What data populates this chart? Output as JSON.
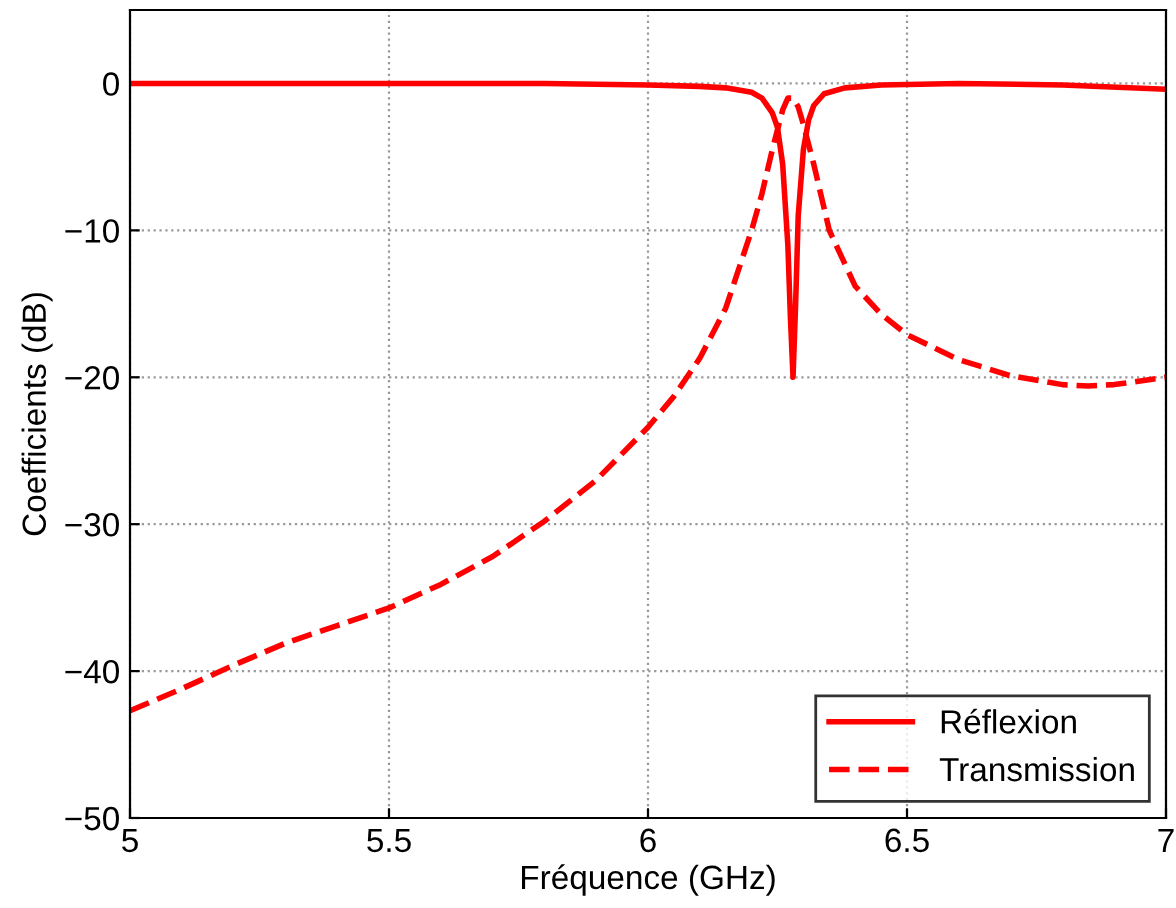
{
  "chart_data": {
    "type": "line",
    "xlabel": "Fréquence (GHz)",
    "ylabel": "Coefficients (dB)",
    "xlim": [
      5,
      7
    ],
    "ylim": [
      -50,
      5
    ],
    "xticks": [
      5,
      5.5,
      6,
      6.5,
      7
    ],
    "yticks": [
      -50,
      -40,
      -30,
      -20,
      -10,
      0
    ],
    "grid": true,
    "legend": "bottom right",
    "series": [
      {
        "name": "Réflexion",
        "color": "#ff0000",
        "line_style": "solid",
        "x": [
          5,
          5.5,
          5.8,
          6.0,
          6.1,
          6.15,
          6.2,
          6.22,
          6.24,
          6.25,
          6.26,
          6.27,
          6.275,
          6.28,
          6.285,
          6.29,
          6.3,
          6.31,
          6.32,
          6.34,
          6.38,
          6.45,
          6.6,
          6.8,
          7
        ],
        "values": [
          0,
          0,
          0,
          -0.1,
          -0.2,
          -0.3,
          -0.6,
          -1,
          -2,
          -3,
          -5.5,
          -11,
          -16,
          -20,
          -15,
          -9,
          -4.5,
          -2.5,
          -1.5,
          -0.7,
          -0.3,
          -0.1,
          0,
          -0.1,
          -0.4
        ]
      },
      {
        "name": "Transmission",
        "color": "#ff0000",
        "line_style": "dashed",
        "x": [
          5,
          5.1,
          5.2,
          5.3,
          5.4,
          5.5,
          5.6,
          5.7,
          5.8,
          5.9,
          6.0,
          6.05,
          6.1,
          6.15,
          6.2,
          6.22,
          6.24,
          6.26,
          6.27,
          6.28,
          6.29,
          6.3,
          6.32,
          6.35,
          6.4,
          6.45,
          6.5,
          6.6,
          6.7,
          6.8,
          6.85,
          6.9,
          7
        ],
        "values": [
          -42.7,
          -41.2,
          -39.6,
          -38.1,
          -36.9,
          -35.7,
          -34.1,
          -32.2,
          -29.8,
          -27,
          -23.4,
          -21.3,
          -18.7,
          -15.3,
          -10,
          -7.5,
          -4.5,
          -1.8,
          -1,
          -1,
          -1.6,
          -2.8,
          -5.5,
          -10,
          -13.8,
          -15.7,
          -17.1,
          -18.8,
          -19.9,
          -20.5,
          -20.6,
          -20.5,
          -20
        ]
      }
    ]
  }
}
